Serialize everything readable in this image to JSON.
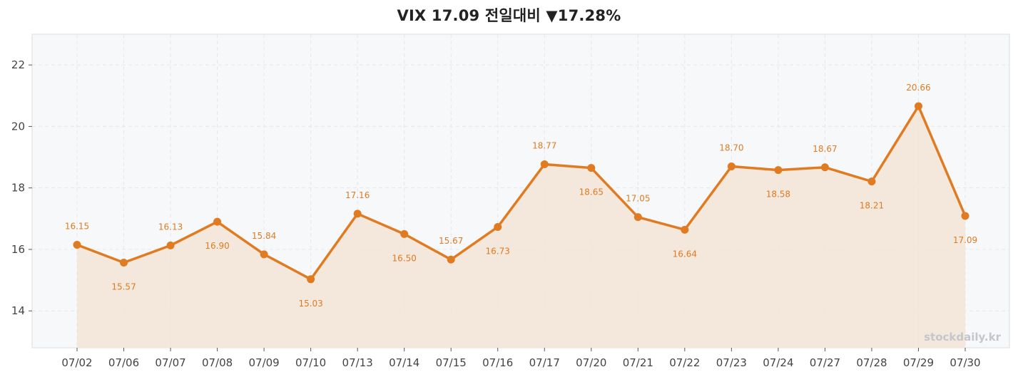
{
  "header": {
    "title": "VIX  17.09  전일대비 ▼17.28%"
  },
  "watermark": "stockdaily.kr",
  "colors": {
    "line": "#e07b22",
    "fill": "#f3e4d6",
    "plot_background": "#f7f8fa",
    "grid": "#e4e7ec",
    "axis_frame": "#d9dce1"
  },
  "chart_data": {
    "type": "line",
    "title": "VIX  17.09  전일대비 ▼17.28%",
    "xlabel": "",
    "ylabel": "",
    "categories": [
      "07/02",
      "07/06",
      "07/07",
      "07/08",
      "07/09",
      "07/10",
      "07/13",
      "07/14",
      "07/15",
      "07/16",
      "07/17",
      "07/20",
      "07/21",
      "07/22",
      "07/23",
      "07/24",
      "07/27",
      "07/28",
      "07/29",
      "07/30"
    ],
    "values": [
      16.15,
      15.57,
      16.13,
      16.9,
      15.84,
      15.03,
      17.16,
      16.5,
      15.67,
      16.73,
      18.77,
      18.65,
      17.05,
      16.64,
      18.7,
      18.58,
      18.67,
      18.21,
      20.66,
      17.09
    ],
    "data_labels": [
      "16.15",
      "15.57",
      "16.13",
      "16.90",
      "15.84",
      "15.03",
      "17.16",
      "16.50",
      "15.67",
      "16.73",
      "18.77",
      "18.65",
      "17.05",
      "16.64",
      "18.70",
      "18.58",
      "18.67",
      "18.21",
      "20.66",
      "17.09"
    ],
    "label_above": [
      true,
      false,
      true,
      false,
      true,
      false,
      true,
      false,
      true,
      false,
      true,
      false,
      true,
      false,
      true,
      false,
      true,
      false,
      true,
      false
    ],
    "yticks": [
      14,
      16,
      18,
      20,
      22
    ],
    "ylim": [
      12.8,
      23.0
    ],
    "grid": true,
    "area_fill": true,
    "legend": "none"
  }
}
